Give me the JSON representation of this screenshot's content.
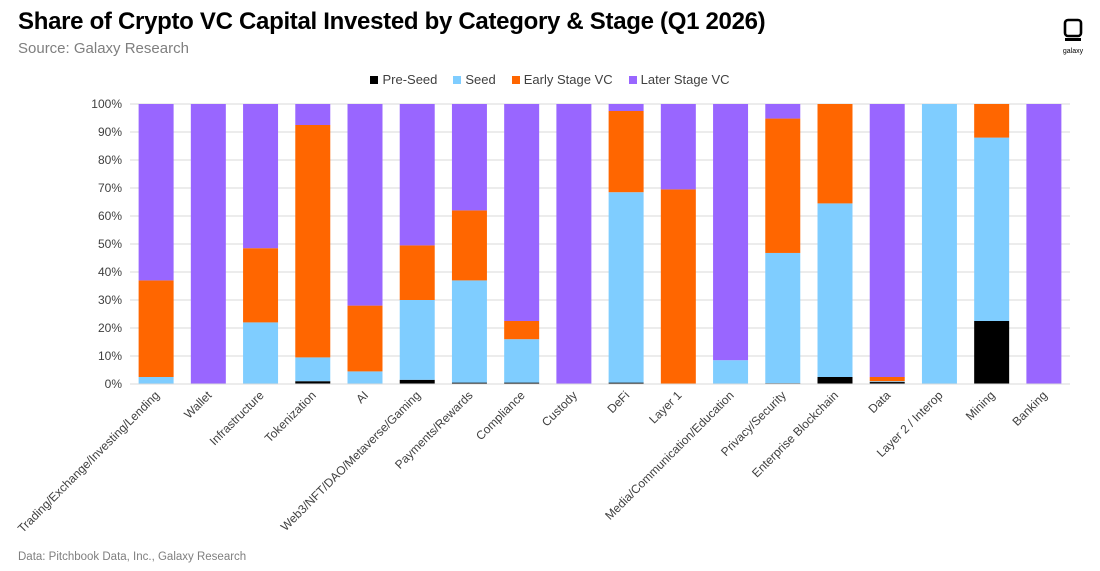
{
  "header": {
    "title": "Share of Crypto VC Capital Invested by Category & Stage (Q1 2026)",
    "subtitle": "Source: Galaxy Research",
    "footer": "Data: Pitchbook Data, Inc., Galaxy Research",
    "logo_text": "galaxy"
  },
  "chart_data": {
    "type": "bar",
    "stacked": true,
    "percent": true,
    "title": "Share of Crypto VC Capital Invested by Category & Stage (Q1 2026)",
    "ylim": [
      0,
      100
    ],
    "yticks": [
      "0%",
      "10%",
      "20%",
      "30%",
      "40%",
      "50%",
      "60%",
      "70%",
      "80%",
      "90%",
      "100%"
    ],
    "grid": true,
    "legend_position": "top-center",
    "categories": [
      "Trading/Exchange/Investing/Lending",
      "Wallet",
      "Infrastructure",
      "Tokenization",
      "AI",
      "Web3/NFT/DAO/Metaverse/Gaming",
      "Payments/Rewards",
      "Compliance",
      "Custody",
      "DeFi",
      "Layer 1",
      "Media/Communication/Education",
      "Privacy/Security",
      "Enterprise Blockchain",
      "Data",
      "Layer 2 / Interop",
      "Mining",
      "Banking"
    ],
    "series": [
      {
        "name": "Pre-Seed",
        "color": "#000000",
        "values": [
          0,
          0,
          0,
          1,
          0,
          1.5,
          0.5,
          0.5,
          0,
          0.5,
          0,
          0,
          0.3,
          2.5,
          0.7,
          0,
          22.5,
          0
        ]
      },
      {
        "name": "Seed",
        "color": "#7fcdff",
        "values": [
          2.5,
          0,
          22,
          8.5,
          4.5,
          28.5,
          36.5,
          15.5,
          0,
          68,
          0,
          8.5,
          46.5,
          62,
          0.3,
          100,
          65.5,
          0
        ]
      },
      {
        "name": "Early Stage VC",
        "color": "#ff6600",
        "values": [
          34.5,
          0,
          26.5,
          83,
          23.5,
          19.5,
          25,
          6.5,
          0,
          29,
          69.5,
          0,
          48,
          35.5,
          1.5,
          0,
          12,
          0
        ]
      },
      {
        "name": "Later Stage VC",
        "color": "#9966ff",
        "values": [
          63,
          100,
          51.5,
          7.5,
          72,
          50.5,
          38,
          77.5,
          100,
          2.5,
          30.5,
          91.5,
          5.2,
          0,
          97.5,
          0,
          0,
          100
        ]
      }
    ]
  }
}
